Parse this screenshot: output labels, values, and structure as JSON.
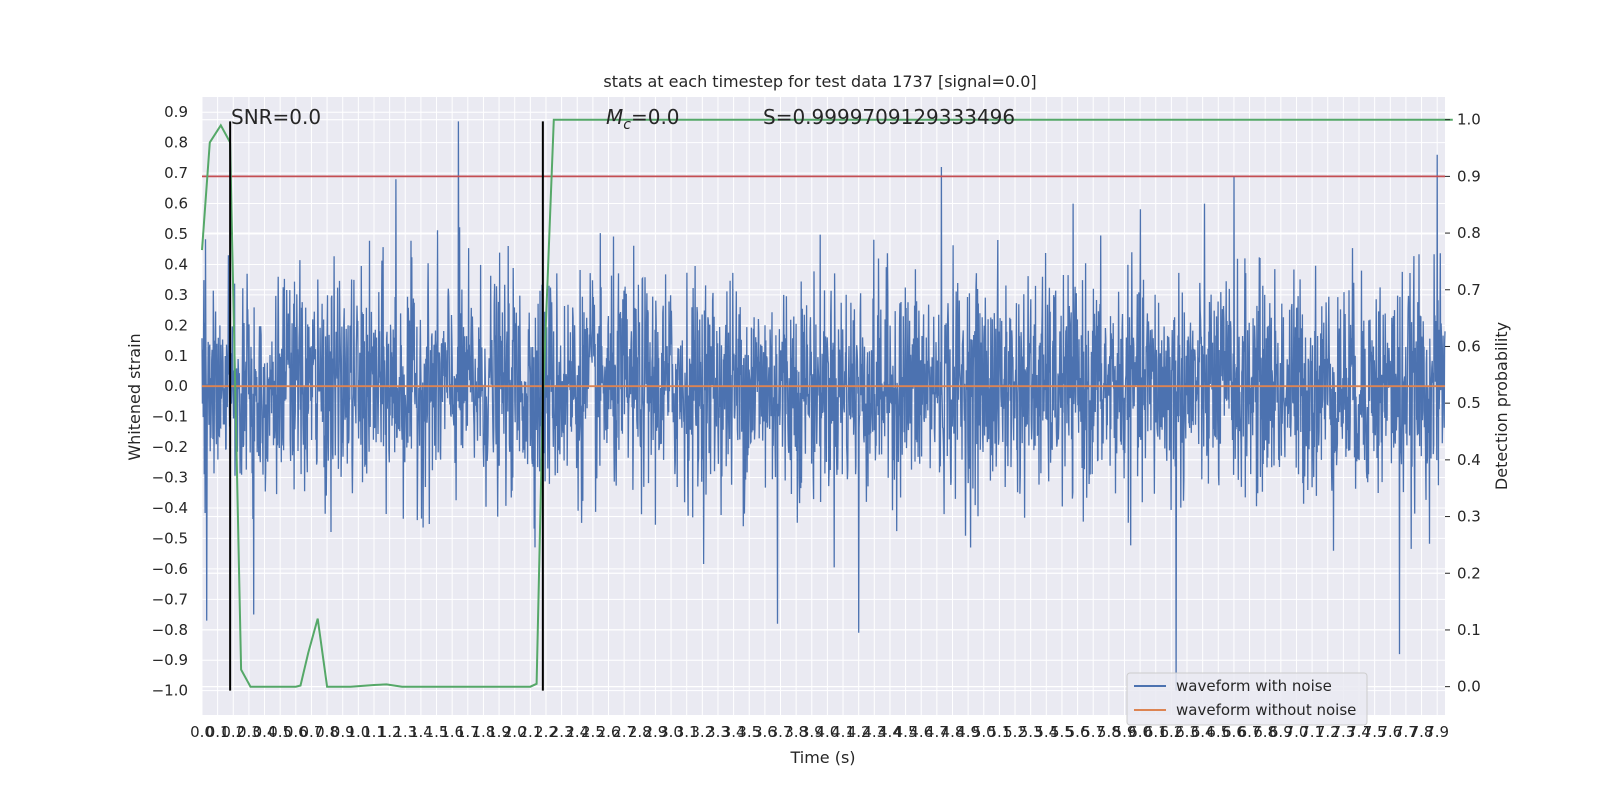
{
  "chart_data": {
    "type": "line",
    "title": "stats at each timestep for test data 1737 [signal=0.0]",
    "xlabel": "Time (s)",
    "ylabel": "Whitened strain",
    "y2label": "Detection probability",
    "xlim": [
      0.0,
      7.95
    ],
    "ylim": [
      -1.08,
      0.95
    ],
    "y2lim": [
      -0.05,
      1.04
    ],
    "x_ticks": [
      0.0,
      0.1,
      0.2,
      0.3,
      0.4,
      0.5,
      0.6,
      0.7,
      0.8,
      0.9,
      1.0,
      1.1,
      1.2,
      1.3,
      1.4,
      1.5,
      1.6,
      1.7,
      1.8,
      1.9,
      2.0,
      2.1,
      2.2,
      2.3,
      2.4,
      2.5,
      2.6,
      2.7,
      2.8,
      2.9,
      3.0,
      3.1,
      3.2,
      3.3,
      3.4,
      3.5,
      3.6,
      3.7,
      3.8,
      3.9,
      4.0,
      4.1,
      4.2,
      4.3,
      4.4,
      4.5,
      4.6,
      4.7,
      4.8,
      4.9,
      5.0,
      5.1,
      5.2,
      5.3,
      5.4,
      5.5,
      5.6,
      5.7,
      5.8,
      5.9,
      6.0,
      6.1,
      6.2,
      6.3,
      6.4,
      6.5,
      6.6,
      6.7,
      6.8,
      6.9,
      7.0,
      7.1,
      7.2,
      7.3,
      7.4,
      7.5,
      7.6,
      7.7,
      7.8,
      7.9
    ],
    "x_tick_labels": [
      "0.0",
      "0.1",
      "0.2",
      "0.3",
      "0.4",
      "0.5",
      "0.6",
      "0.7",
      "0.8",
      "0.9",
      "1.0",
      "1.1",
      "1.2",
      "1.3",
      "1.4",
      "1.5",
      "1.6",
      "1.7",
      "1.8",
      "1.9",
      "2.0",
      "2.1",
      "2.2",
      "2.3",
      "2.4",
      "2.5",
      "2.6",
      "2.7",
      "2.8",
      "2.9",
      "3.0",
      "3.1",
      "3.2",
      "3.3",
      "3.4",
      "3.5",
      "3.6",
      "3.7",
      "3.8",
      "3.9",
      "4.0",
      "4.1",
      "4.2",
      "4.3",
      "4.4",
      "4.5",
      "4.6",
      "4.7",
      "4.8",
      "4.9",
      "5.0",
      "5.1",
      "5.2",
      "5.3",
      "5.4",
      "5.5",
      "5.6",
      "5.7",
      "5.8",
      "5.9",
      "6.0",
      "6.1",
      "6.2",
      "6.3",
      "6.4",
      "6.5",
      "6.6",
      "6.7",
      "6.8",
      "6.9",
      "7.0",
      "7.1",
      "7.2",
      "7.3",
      "7.4",
      "7.5",
      "7.6",
      "7.7",
      "7.8",
      "7.9"
    ],
    "y_ticks": [
      -1.0,
      -0.9,
      -0.8,
      -0.7,
      -0.6,
      -0.5,
      -0.4,
      -0.3,
      -0.2,
      -0.1,
      0.0,
      0.1,
      0.2,
      0.3,
      0.4,
      0.5,
      0.6,
      0.7,
      0.8,
      0.9
    ],
    "y_tick_labels": [
      "−1.0",
      "−0.9",
      "−0.8",
      "−0.7",
      "−0.6",
      "−0.5",
      "−0.4",
      "−0.3",
      "−0.2",
      "−0.1",
      "0.0",
      "0.1",
      "0.2",
      "0.3",
      "0.4",
      "0.5",
      "0.6",
      "0.7",
      "0.8",
      "0.9"
    ],
    "y2_ticks": [
      0.0,
      0.1,
      0.2,
      0.3,
      0.4,
      0.5,
      0.6,
      0.7,
      0.8,
      0.9,
      1.0
    ],
    "y2_tick_labels": [
      "0.0",
      "0.1",
      "0.2",
      "0.3",
      "0.4",
      "0.5",
      "0.6",
      "0.7",
      "0.8",
      "0.9",
      "1.0"
    ],
    "grid": true,
    "legend_position": "lower-right",
    "annotations": {
      "snr": "SNR=0.0",
      "mc_symbol": "M",
      "mc_subscript": "c",
      "mc_value": "=0.0",
      "s": "S=0.9999709129333496"
    },
    "series": [
      {
        "name": "waveform with noise",
        "axis": "left",
        "color": "#4c72b0",
        "kind": "noise",
        "duration_s": 7.95,
        "typical_amplitude": 0.32,
        "peaks": [
          {
            "x": 0.03,
            "y": -0.77
          },
          {
            "x": 0.17,
            "y": 0.43
          },
          {
            "x": 0.33,
            "y": -0.75
          },
          {
            "x": 1.24,
            "y": 0.68
          },
          {
            "x": 1.64,
            "y": 0.87
          },
          {
            "x": 3.68,
            "y": -0.78
          },
          {
            "x": 4.2,
            "y": -0.81
          },
          {
            "x": 4.73,
            "y": 0.72
          },
          {
            "x": 6.23,
            "y": -1.0
          },
          {
            "x": 6.6,
            "y": 0.69
          },
          {
            "x": 7.66,
            "y": -0.88
          },
          {
            "x": 7.9,
            "y": 0.76
          }
        ]
      },
      {
        "name": "waveform without noise",
        "axis": "left",
        "color": "#dd8452",
        "x": [
          0.0,
          7.95
        ],
        "y": [
          0.0,
          0.0
        ]
      },
      {
        "name": "",
        "axis": "right",
        "color": "#55a868",
        "x": [
          0.0,
          0.05,
          0.12,
          0.18,
          0.25,
          0.31,
          0.4,
          0.6,
          0.63,
          0.68,
          0.74,
          0.8,
          0.95,
          1.1,
          1.18,
          1.28,
          2.0,
          2.1,
          2.14,
          2.18,
          2.25,
          8.0
        ],
        "y": [
          0.77,
          0.96,
          0.99,
          0.96,
          0.03,
          0.0,
          0.0,
          0.0,
          0.002,
          0.06,
          0.12,
          0.0,
          0.0,
          0.003,
          0.004,
          0.0,
          0.0,
          0.0,
          0.005,
          0.5,
          1.0,
          1.0
        ]
      }
    ],
    "threshold": {
      "axis": "right",
      "y": 0.9,
      "color": "#c44e52"
    },
    "vertical_markers": {
      "x": [
        0.18,
        2.18
      ],
      "y_from": -1.0,
      "y_to": 0.87,
      "color": "#000000"
    }
  }
}
